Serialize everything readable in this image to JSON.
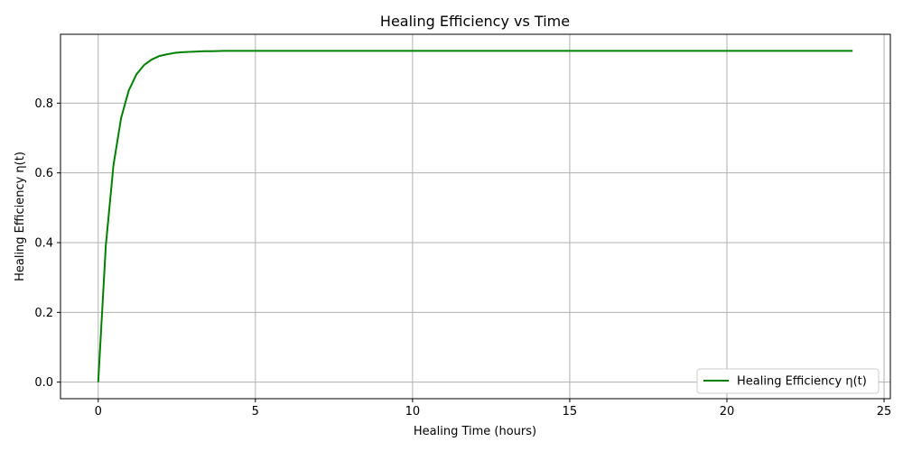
{
  "chart_data": {
    "type": "line",
    "title": "Healing Efficiency vs Time",
    "xlabel": "Healing Time (hours)",
    "ylabel": "Healing Efficiency η(t)",
    "xlim": [
      -1.2,
      25.2
    ],
    "ylim": [
      -0.0475,
      0.9975
    ],
    "xticks": [
      0,
      5,
      10,
      15,
      20,
      25
    ],
    "xtick_labels": [
      "0",
      "5",
      "10",
      "15",
      "20",
      "25"
    ],
    "yticks": [
      0.0,
      0.2,
      0.4,
      0.6,
      0.8
    ],
    "ytick_labels": [
      "0.0",
      "0.2",
      "0.4",
      "0.6",
      "0.8"
    ],
    "grid": true,
    "legend_position": "bottom-right",
    "series": [
      {
        "name": "Healing Efficiency η(t)",
        "color": "#008000",
        "x": [
          0,
          0.242,
          0.485,
          0.727,
          0.97,
          1.212,
          1.455,
          1.697,
          1.939,
          2.182,
          2.424,
          2.667,
          2.909,
          3.152,
          3.394,
          3.636,
          4,
          5,
          6,
          8,
          10,
          12,
          14,
          16,
          18,
          20,
          22,
          24
        ],
        "y": [
          0,
          0.392,
          0.622,
          0.757,
          0.836,
          0.882,
          0.909,
          0.925,
          0.935,
          0.94,
          0.944,
          0.946,
          0.947,
          0.948,
          0.949,
          0.949,
          0.95,
          0.95,
          0.95,
          0.95,
          0.95,
          0.95,
          0.95,
          0.95,
          0.95,
          0.95,
          0.95,
          0.95
        ]
      }
    ]
  }
}
